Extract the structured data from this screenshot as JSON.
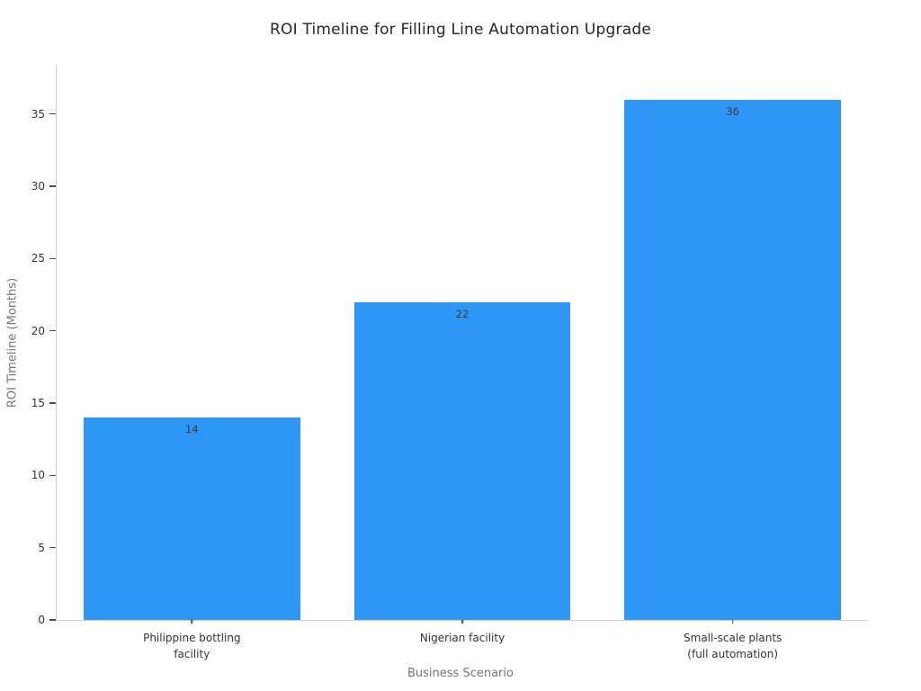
{
  "chart_data": {
    "type": "bar",
    "title": "ROI Timeline for Filling Line Automation Upgrade",
    "xlabel": "Business Scenario",
    "ylabel": "ROI Timeline (Months)",
    "categories": [
      "Philippine bottling\nfacility",
      "Nigerian facility",
      "Small-scale plants\n(full automation)"
    ],
    "values": [
      14,
      22,
      36
    ],
    "bar_labels": [
      "14",
      "22",
      "36"
    ],
    "yticks": [
      0,
      5,
      10,
      15,
      20,
      25,
      30,
      35
    ],
    "ylim": [
      0,
      38.4
    ],
    "bar_color": "#2e96f5",
    "bar_label_color": "#3a3a3a",
    "bar_width_fraction": 0.8,
    "grid": false,
    "legend": "none"
  }
}
